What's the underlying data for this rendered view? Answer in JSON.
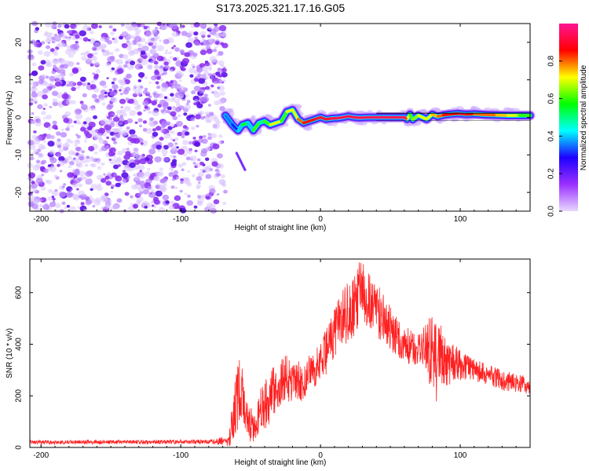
{
  "figure_title": "S173.2025.321.17.16.G05",
  "chart_data": [
    {
      "type": "heatmap",
      "title": "S173.2025.321.17.16.G05",
      "xlabel": "Height of straight line (km)",
      "ylabel": "Frequency (Hz)",
      "xlim": [
        -208,
        150
      ],
      "ylim": [
        -25,
        25
      ],
      "xticks": [
        -200,
        -100,
        0,
        100
      ],
      "yticks": [
        -20,
        -10,
        0,
        10,
        20
      ],
      "colorbar": {
        "label": "Normalized spectral amplitude",
        "ticks": [
          0.0,
          0.2,
          0.4,
          0.6,
          0.8
        ],
        "range": [
          0,
          1
        ],
        "colormap": [
          "#e8d8ff",
          "#9b30ff",
          "#1e00ff",
          "#00ffff",
          "#00ff00",
          "#ffff00",
          "#ff0000",
          "#ff1493"
        ]
      },
      "noise_region_x": [
        -208,
        -68
      ],
      "ridge": {
        "x": [
          -68,
          -63,
          -59,
          -56,
          -52,
          -48,
          -44,
          -40,
          -36,
          -32,
          -28,
          -24,
          -20,
          -16,
          -12,
          -8,
          -4,
          0,
          4,
          8,
          12,
          16,
          20,
          24,
          28,
          34,
          40,
          50,
          60,
          62,
          64,
          66,
          70,
          76,
          80,
          84,
          88,
          92,
          98,
          104,
          110,
          118,
          126,
          134,
          142,
          150
        ],
        "y": [
          0.5,
          -2.0,
          -3.5,
          -2.0,
          -1.5,
          -3.5,
          -1.5,
          -1.0,
          -2.0,
          -1.5,
          -1.0,
          1.5,
          2.0,
          -0.5,
          -1.5,
          -1.0,
          -0.5,
          0.0,
          -0.5,
          -0.3,
          -0.2,
          0.0,
          0.3,
          0.0,
          -0.1,
          0.0,
          0.0,
          0.0,
          0.0,
          -0.5,
          0.8,
          -0.6,
          0.5,
          -0.5,
          0.8,
          0.2,
          0.6,
          0.8,
          1.0,
          0.8,
          0.9,
          0.7,
          0.6,
          0.5,
          0.5,
          0.5
        ],
        "intensity": [
          0.35,
          0.3,
          0.4,
          0.55,
          0.4,
          0.6,
          0.5,
          0.6,
          0.7,
          0.7,
          0.6,
          0.7,
          0.7,
          0.8,
          0.85,
          0.85,
          0.9,
          0.9,
          0.9,
          0.95,
          1.0,
          1.0,
          1.0,
          1.0,
          1.0,
          1.0,
          1.0,
          1.0,
          1.0,
          0.7,
          0.6,
          0.65,
          0.7,
          0.7,
          0.75,
          0.8,
          0.85,
          0.85,
          0.9,
          0.85,
          0.8,
          0.8,
          0.75,
          0.7,
          0.6,
          0.5
        ]
      },
      "echo": {
        "x": [
          -60,
          -54
        ],
        "y": [
          -9.5,
          -14
        ]
      }
    },
    {
      "type": "line",
      "xlabel": "Height of straight line (km)",
      "ylabel": "SNR (10 * v/v)",
      "xlim": [
        -208,
        150
      ],
      "ylim": [
        0,
        730
      ],
      "xticks": [
        -200,
        -100,
        0,
        100
      ],
      "yticks": [
        0,
        200,
        400,
        600
      ],
      "color": "#ff2020",
      "series": [
        {
          "name": "SNR",
          "x": [
            -208,
            -180,
            -150,
            -120,
            -100,
            -80,
            -66,
            -62,
            -58,
            -55,
            -52,
            -48,
            -44,
            -40,
            -36,
            -32,
            -28,
            -24,
            -20,
            -16,
            -12,
            -8,
            -4,
            0,
            4,
            8,
            12,
            16,
            20,
            24,
            28,
            32,
            36,
            40,
            44,
            48,
            52,
            56,
            60,
            64,
            68,
            72,
            76,
            80,
            84,
            88,
            92,
            96,
            100,
            104,
            110,
            120,
            130,
            140,
            150
          ],
          "y": [
            20,
            20,
            21,
            21,
            22,
            22,
            25,
            110,
            230,
            170,
            100,
            80,
            130,
            170,
            200,
            220,
            250,
            270,
            240,
            260,
            240,
            280,
            300,
            330,
            370,
            420,
            470,
            500,
            530,
            560,
            590,
            590,
            570,
            540,
            510,
            480,
            450,
            420,
            400,
            390,
            380,
            390,
            390,
            360,
            330,
            340,
            320,
            330,
            320,
            310,
            300,
            280,
            260,
            250,
            240
          ],
          "noise": [
            8,
            8,
            8,
            8,
            8,
            8,
            20,
            120,
            130,
            110,
            80,
            60,
            90,
            100,
            110,
            90,
            100,
            90,
            80,
            80,
            70,
            80,
            80,
            80,
            90,
            90,
            100,
            110,
            120,
            130,
            140,
            130,
            120,
            110,
            100,
            90,
            90,
            80,
            70,
            70,
            60,
            60,
            100,
            160,
            180,
            100,
            80,
            70,
            60,
            50,
            45,
            40,
            40,
            35,
            35
          ]
        }
      ]
    }
  ]
}
